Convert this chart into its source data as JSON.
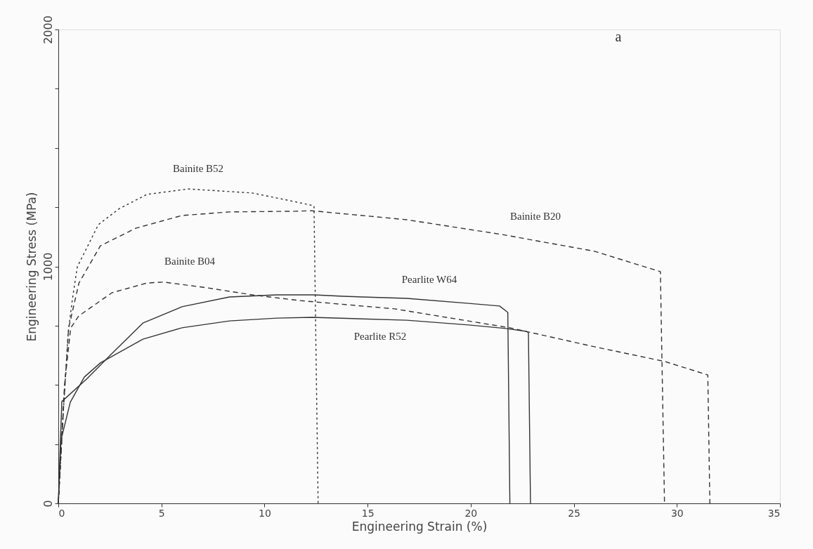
{
  "chart_data": {
    "type": "line",
    "xlabel": "Engineering Strain (%)",
    "ylabel": "Engineering Stress (MPa)",
    "annotations": [
      "a"
    ],
    "xlim": [
      0,
      35
    ],
    "xticks": [
      0,
      5,
      10,
      15,
      20,
      25,
      30,
      35
    ],
    "ylim": [
      0,
      2000
    ],
    "yticks": [
      0,
      {
        "value": 250,
        "label": null
      },
      {
        "value": 500,
        "label": null
      },
      {
        "value": 750,
        "label": null
      },
      1000,
      {
        "value": 1250,
        "label": null
      },
      {
        "value": 1500,
        "label": null
      },
      {
        "value": 1750,
        "label": null
      },
      2000
    ],
    "grid": false,
    "marker": "none",
    "series": [
      {
        "name": "Bainite B52",
        "color": "#333333",
        "line_style": "dotted",
        "x": [
          0,
          0.25,
          0.48,
          0.68,
          0.92,
          1.94,
          2.96,
          4.3,
          6.3,
          9.4,
          11.1,
          12.4,
          12.6
        ],
        "values": [
          0,
          400,
          723,
          860,
          998,
          1176,
          1244,
          1304,
          1327,
          1310,
          1280,
          1256,
          0
        ]
      },
      {
        "name": "Bainite B20",
        "color": "#333333",
        "line_style": "dashed",
        "x": [
          0,
          0.25,
          0.5,
          1.0,
          2.04,
          3.75,
          6.0,
          8.3,
          11.5,
          12.3,
          16.9,
          21.5,
          26.0,
          29.2,
          29.4
        ],
        "values": [
          0,
          400,
          740,
          930,
          1087,
          1161,
          1215,
          1230,
          1233,
          1235,
          1197,
          1135,
          1064,
          978,
          0
        ]
      },
      {
        "name": "Bainite B04",
        "color": "#333333",
        "line_style": "dashed",
        "x": [
          0,
          0.3,
          0.6,
          0.99,
          2.6,
          4.3,
          5.1,
          7.2,
          9.4,
          11.7,
          16.3,
          21.9,
          26.0,
          29.4,
          31.5,
          31.6
        ],
        "values": [
          0,
          500,
          740,
          791,
          889,
          930,
          934,
          910,
          880,
          856,
          821,
          741,
          661,
          599,
          542,
          0
        ]
      },
      {
        "name": "Pearlite W64",
        "color": "#333333",
        "line_style": "solid",
        "x": [
          0,
          0.17,
          1.36,
          2.62,
          4.1,
          6.0,
          8.3,
          10.6,
          12.4,
          13.8,
          16.9,
          19.9,
          21.4,
          21.8,
          21.9
        ],
        "values": [
          0,
          430,
          524,
          634,
          761,
          830,
          871,
          880,
          880,
          874,
          865,
          844,
          833,
          806,
          0
        ]
      },
      {
        "name": "Pearlite R52",
        "color": "#333333",
        "line_style": "solid",
        "x": [
          0,
          0.13,
          0.58,
          1.26,
          2.04,
          4.1,
          6.0,
          8.3,
          10.6,
          12.3,
          16.9,
          19.9,
          21.7,
          22.7,
          22.8,
          22.9
        ],
        "values": [
          0,
          267,
          427,
          533,
          593,
          693,
          741,
          770,
          782,
          785,
          773,
          753,
          738,
          726,
          720,
          0
        ]
      }
    ]
  }
}
